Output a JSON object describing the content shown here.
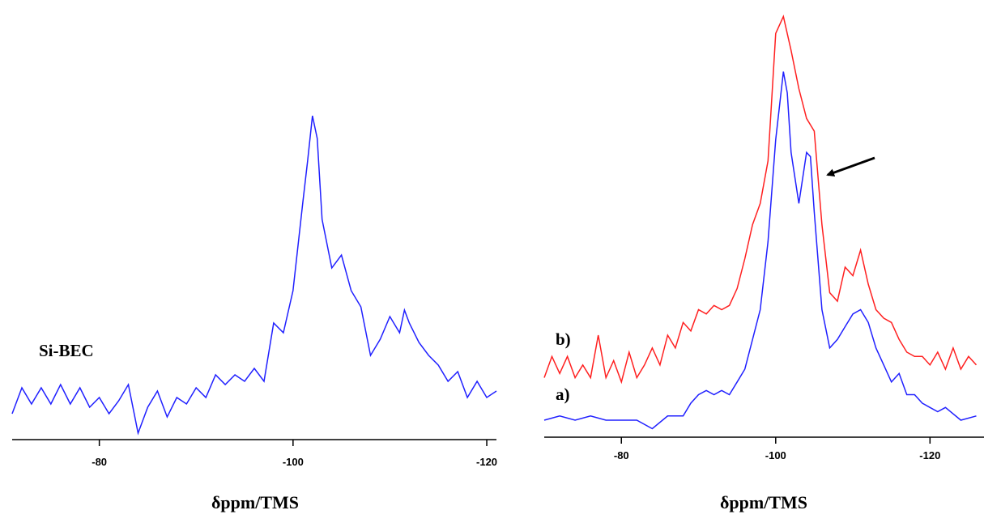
{
  "chart_data": [
    {
      "type": "line",
      "x_label": "δppm/TMS",
      "xlim": [
        -71,
        -121
      ],
      "ylim": [
        0,
        100
      ],
      "xticks": [
        -80,
        -100,
        -120
      ],
      "series": [
        {
          "name": "Si-BEC",
          "color": "#2020ff",
          "x": [
            -71,
            -72,
            -73,
            -74,
            -75,
            -76,
            -77,
            -78,
            -79,
            -80,
            -81,
            -82,
            -83,
            -84,
            -85,
            -86,
            -87,
            -88,
            -89,
            -90,
            -91,
            -92,
            -93,
            -94,
            -95,
            -96,
            -97,
            -98,
            -99,
            -100,
            -101,
            -101.5,
            -102,
            -102.5,
            -103,
            -104,
            -105,
            -106,
            -107,
            -108,
            -109,
            -110,
            -111,
            -111.5,
            -112,
            -113,
            -114,
            -115,
            -116,
            -117,
            -118,
            -119,
            -120,
            -121
          ],
          "values": [
            8,
            16,
            11,
            16,
            11,
            17,
            11,
            16,
            10,
            13,
            8,
            12,
            17,
            2,
            10,
            15,
            7,
            13,
            11,
            16,
            13,
            20,
            17,
            20,
            18,
            22,
            18,
            36,
            33,
            46,
            73,
            86,
            100,
            93,
            68,
            53,
            57,
            46,
            41,
            26,
            31,
            38,
            33,
            40,
            36,
            30,
            26,
            23,
            18,
            21,
            13,
            18,
            13,
            15
          ]
        }
      ]
    },
    {
      "type": "line",
      "x_label": "δppm/TMS",
      "xlim": [
        -70,
        -127
      ],
      "ylim": [
        0,
        100
      ],
      "xticks": [
        -80,
        -100,
        -120
      ],
      "series": [
        {
          "name": "b)",
          "color": "#ff2020",
          "x": [
            -70,
            -71,
            -72,
            -73,
            -74,
            -75,
            -76,
            -77,
            -78,
            -79,
            -80,
            -81,
            -82,
            -83,
            -84,
            -85,
            -86,
            -87,
            -88,
            -89,
            -90,
            -91,
            -92,
            -93,
            -94,
            -95,
            -96,
            -97,
            -98,
            -99,
            -100,
            -101,
            -102,
            -103,
            -104,
            -105,
            -106,
            -107,
            -108,
            -109,
            -110,
            -111,
            -112,
            -113,
            -114,
            -115,
            -116,
            -117,
            -118,
            -119,
            -120,
            -121,
            -122,
            -123,
            -124,
            -125,
            -126
          ],
          "values": [
            14,
            19,
            15,
            19,
            14,
            17,
            14,
            24,
            14,
            18,
            13,
            20,
            14,
            17,
            21,
            17,
            24,
            21,
            27,
            25,
            30,
            29,
            31,
            30,
            31,
            35,
            42,
            50,
            55,
            65,
            95,
            99,
            91,
            82,
            75,
            72,
            50,
            34,
            32,
            40,
            38,
            44,
            36,
            30,
            28,
            27,
            23,
            20,
            19,
            19,
            17,
            20,
            16,
            21,
            16,
            19,
            17
          ]
        },
        {
          "name": "a)",
          "color": "#2020ff",
          "x": [
            -70,
            -72,
            -74,
            -76,
            -78,
            -80,
            -82,
            -84,
            -86,
            -88,
            -89,
            -90,
            -91,
            -92,
            -93,
            -94,
            -95,
            -96,
            -97,
            -98,
            -99,
            -100,
            -101,
            -101.5,
            -102,
            -103,
            -104,
            -104.5,
            -105,
            -106,
            -107,
            -108,
            -109,
            -110,
            -111,
            -112,
            -113,
            -114,
            -115,
            -116,
            -117,
            -118,
            -119,
            -120,
            -121,
            -122,
            -124,
            -126
          ],
          "values": [
            4,
            5,
            4,
            5,
            4,
            4,
            4,
            2,
            5,
            5,
            8,
            10,
            11,
            10,
            11,
            10,
            13,
            16,
            23,
            30,
            46,
            70,
            86,
            81,
            67,
            55,
            67,
            66,
            53,
            30,
            21,
            23,
            26,
            29,
            30,
            27,
            21,
            17,
            13,
            15,
            10,
            10,
            8,
            7,
            6,
            7,
            4,
            5
          ]
        }
      ]
    }
  ]
}
